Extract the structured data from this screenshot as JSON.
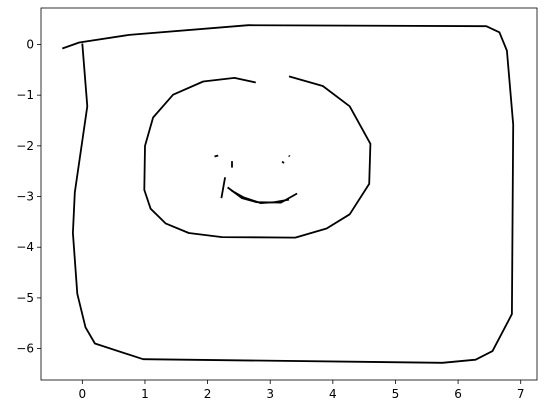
{
  "chart_data": {
    "type": "line",
    "title": "",
    "xlabel": "",
    "ylabel": "",
    "xlim": [
      -0.66,
      7.26
    ],
    "ylim": [
      -6.62,
      0.72
    ],
    "grid": false,
    "legend": "none",
    "line_color": "#000000",
    "x_ticks": [
      0,
      1,
      2,
      3,
      4,
      5,
      6,
      7
    ],
    "y_ticks": [
      0,
      -1,
      -2,
      -3,
      -4,
      -5,
      -6
    ],
    "series": [
      {
        "points": [
          [
            -0.32,
            -0.08
          ],
          [
            -0.05,
            0.04
          ],
          [
            0.75,
            0.19
          ],
          [
            2.65,
            0.38
          ],
          [
            6.45,
            0.36
          ],
          [
            6.66,
            0.24
          ],
          [
            6.78,
            -0.12
          ],
          [
            6.88,
            -1.58
          ],
          [
            6.86,
            -5.32
          ],
          [
            6.55,
            -6.05
          ],
          [
            6.28,
            -6.22
          ],
          [
            5.75,
            -6.28
          ],
          [
            0.97,
            -6.21
          ],
          [
            0.2,
            -5.9
          ],
          [
            0.05,
            -5.58
          ],
          [
            -0.08,
            -4.92
          ],
          [
            -0.15,
            -3.72
          ],
          [
            -0.12,
            -2.92
          ],
          [
            0.08,
            -1.22
          ],
          [
            0.0,
            0.02
          ]
        ]
      },
      {
        "points": [
          [
            2.77,
            -0.75
          ],
          [
            2.43,
            -0.66
          ],
          [
            1.93,
            -0.73
          ],
          [
            1.45,
            -0.99
          ],
          [
            1.13,
            -1.44
          ],
          [
            1.0,
            -2.0
          ],
          [
            0.99,
            -2.87
          ],
          [
            1.09,
            -3.24
          ],
          [
            1.33,
            -3.53
          ],
          [
            1.7,
            -3.72
          ],
          [
            2.23,
            -3.8
          ],
          [
            3.4,
            -3.81
          ],
          [
            3.9,
            -3.63
          ],
          [
            4.27,
            -3.35
          ],
          [
            4.58,
            -2.75
          ],
          [
            4.6,
            -1.96
          ],
          [
            4.27,
            -1.22
          ],
          [
            3.84,
            -0.82
          ],
          [
            3.3,
            -0.63
          ]
        ]
      },
      {
        "points": [
          [
            2.11,
            -2.21
          ],
          [
            2.17,
            -2.19
          ]
        ]
      },
      {
        "points": [
          [
            2.39,
            -2.3
          ],
          [
            2.39,
            -2.43
          ]
        ]
      },
      {
        "points": [
          [
            3.19,
            -2.31
          ],
          [
            3.22,
            -2.34
          ]
        ]
      },
      {
        "points": [
          [
            3.3,
            -2.19
          ],
          [
            3.31,
            -2.21
          ]
        ]
      },
      {
        "points": [
          [
            2.28,
            -2.62
          ],
          [
            2.22,
            -3.03
          ]
        ]
      },
      {
        "points": [
          [
            2.32,
            -2.82
          ],
          [
            2.55,
            -3.03
          ],
          [
            2.78,
            -3.11
          ],
          [
            3.17,
            -3.12
          ],
          [
            3.43,
            -2.94
          ]
        ]
      },
      {
        "points": [
          [
            2.38,
            -2.88
          ],
          [
            2.58,
            -3.02
          ],
          [
            2.85,
            -3.13
          ],
          [
            3.07,
            -3.11
          ],
          [
            3.3,
            -3.06
          ]
        ]
      }
    ]
  }
}
